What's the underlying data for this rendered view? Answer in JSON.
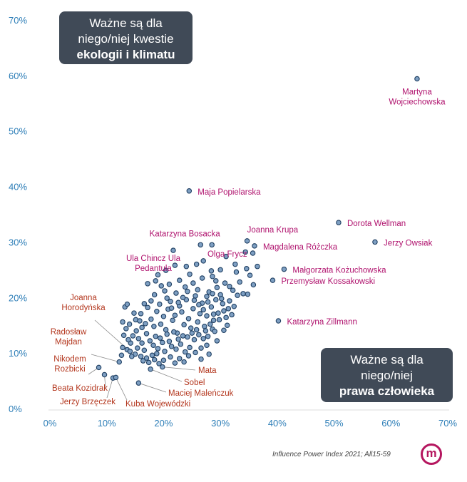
{
  "chart_data": {
    "type": "scatter",
    "xlim": [
      0,
      70
    ],
    "ylim": [
      0,
      70
    ],
    "x_ticks": [
      "0%",
      "10%",
      "20%",
      "30%",
      "40%",
      "50%",
      "60%",
      "70%"
    ],
    "y_ticks": [
      "0%",
      "10%",
      "20%",
      "30%",
      "40%",
      "50%",
      "60%",
      "70%"
    ],
    "grid": false,
    "colors": {
      "point_fill": "#7e9fc2",
      "point_stroke": "#1f3f62",
      "label_magenta": "#b0136e",
      "label_red": "#b3361d",
      "tick": "#2f7fb8",
      "callout_bg": "#404a57"
    },
    "labeled_points": [
      {
        "name": "Martyna\nWojciechowska",
        "x": 64.6,
        "y": 59.4,
        "color": "magenta"
      },
      {
        "name": "Maja Popielarska",
        "x": 24.5,
        "y": 39.2,
        "color": "magenta"
      },
      {
        "name": "Dorota Wellman",
        "x": 50.8,
        "y": 33.5,
        "color": "magenta"
      },
      {
        "name": "Jerzy Owsiak",
        "x": 57.2,
        "y": 30.0,
        "color": "magenta"
      },
      {
        "name": "Katarzyna Bosacka",
        "x": 28.5,
        "y": 29.5,
        "color": "magenta"
      },
      {
        "name": "Joanna Krupa",
        "x": 34.7,
        "y": 30.2,
        "color": "magenta"
      },
      {
        "name": "Magdalena Różczka",
        "x": 36.0,
        "y": 29.3,
        "color": "magenta"
      },
      {
        "name": "Olga Frycz",
        "x": 35.7,
        "y": 28.0,
        "color": "magenta"
      },
      {
        "name": "Ula Chincz Ula\nPedantula",
        "x": 21.7,
        "y": 28.5,
        "color": "magenta"
      },
      {
        "name": "Małgorzata Kożuchowska",
        "x": 41.2,
        "y": 25.1,
        "color": "magenta"
      },
      {
        "name": "Przemysław Kossakowski",
        "x": 39.2,
        "y": 23.1,
        "color": "magenta"
      },
      {
        "name": "Katarzyna Zillmann",
        "x": 40.2,
        "y": 15.8,
        "color": "magenta"
      },
      {
        "name": "Joanna\nHorodyńska",
        "x": 14.1,
        "y": 10.3,
        "color": "red"
      },
      {
        "name": "Radosław\nMajdan",
        "x": 12.2,
        "y": 8.4,
        "color": "red"
      },
      {
        "name": "Nikodem\nRozbicki",
        "x": 8.6,
        "y": 7.4,
        "color": "red"
      },
      {
        "name": "Beata Kozidrak",
        "x": 9.6,
        "y": 6.1,
        "color": "red"
      },
      {
        "name": "Jerzy Brzęczek",
        "x": 11.1,
        "y": 5.5,
        "color": "red"
      },
      {
        "name": "Kuba Wojewódzki",
        "x": 11.6,
        "y": 5.6,
        "color": "red"
      },
      {
        "name": "Maciej Maleńczuk",
        "x": 15.6,
        "y": 4.6,
        "color": "red"
      },
      {
        "name": "Sobel",
        "x": 17.7,
        "y": 7.1,
        "color": "red"
      },
      {
        "name": "Mata",
        "x": 19.8,
        "y": 7.5,
        "color": "red"
      },
      {
        "name": "",
        "x": 26.5,
        "y": 29.5,
        "color": "magenta"
      }
    ],
    "unlabeled_points": [
      [
        13.2,
        18.3
      ],
      [
        14.8,
        17.2
      ],
      [
        15.1,
        16.0
      ],
      [
        16.0,
        17.1
      ],
      [
        16.8,
        15.3
      ],
      [
        17.2,
        18.2
      ],
      [
        17.8,
        16.1
      ],
      [
        18.3,
        14.8
      ],
      [
        18.8,
        17.5
      ],
      [
        19.3,
        18.8
      ],
      [
        19.5,
        15.2
      ],
      [
        20.0,
        16.6
      ],
      [
        20.4,
        14.2
      ],
      [
        20.8,
        17.9
      ],
      [
        21.2,
        19.3
      ],
      [
        21.6,
        15.9
      ],
      [
        22.0,
        16.8
      ],
      [
        22.4,
        13.6
      ],
      [
        22.8,
        18.5
      ],
      [
        23.2,
        17.4
      ],
      [
        23.6,
        15.1
      ],
      [
        24.0,
        19.6
      ],
      [
        24.4,
        16.2
      ],
      [
        24.8,
        14.5
      ],
      [
        25.2,
        18.0
      ],
      [
        25.6,
        20.3
      ],
      [
        26.0,
        15.6
      ],
      [
        26.4,
        17.1
      ],
      [
        26.8,
        19.0
      ],
      [
        27.2,
        14.8
      ],
      [
        27.6,
        16.7
      ],
      [
        28.0,
        21.0
      ],
      [
        28.4,
        18.3
      ],
      [
        28.8,
        15.9
      ],
      [
        29.2,
        19.6
      ],
      [
        29.6,
        17.2
      ],
      [
        30.0,
        20.5
      ],
      [
        30.4,
        18.9
      ],
      [
        31.0,
        16.4
      ],
      [
        31.6,
        22.0
      ],
      [
        32.2,
        21.3
      ],
      [
        32.8,
        24.6
      ],
      [
        33.4,
        22.8
      ],
      [
        34.0,
        20.7
      ],
      [
        34.6,
        25.2
      ],
      [
        35.2,
        24.0
      ],
      [
        35.8,
        22.3
      ],
      [
        36.5,
        25.6
      ],
      [
        33.0,
        20.4
      ],
      [
        34.8,
        20.6
      ],
      [
        17.0,
        13.5
      ],
      [
        17.6,
        12.2
      ],
      [
        18.2,
        11.4
      ],
      [
        18.6,
        13.0
      ],
      [
        19.0,
        10.8
      ],
      [
        19.4,
        12.7
      ],
      [
        19.8,
        11.9
      ],
      [
        20.2,
        10.3
      ],
      [
        20.6,
        13.4
      ],
      [
        21.0,
        12.1
      ],
      [
        21.4,
        11.2
      ],
      [
        21.8,
        13.8
      ],
      [
        22.2,
        10.7
      ],
      [
        22.6,
        12.5
      ],
      [
        23.0,
        11.6
      ],
      [
        23.4,
        13.1
      ],
      [
        23.8,
        10.2
      ],
      [
        24.2,
        12.9
      ],
      [
        24.6,
        11.0
      ],
      [
        25.0,
        13.6
      ],
      [
        25.4,
        12.4
      ],
      [
        25.8,
        14.2
      ],
      [
        26.2,
        13.3
      ],
      [
        26.6,
        10.9
      ],
      [
        27.0,
        12.6
      ],
      [
        27.4,
        14.0
      ],
      [
        27.8,
        13.0
      ],
      [
        28.2,
        15.2
      ],
      [
        28.6,
        14.3
      ],
      [
        29.0,
        13.9
      ],
      [
        15.6,
        12.6
      ],
      [
        16.2,
        11.8
      ],
      [
        16.6,
        10.5
      ],
      [
        14.6,
        13.1
      ],
      [
        14.2,
        11.8
      ],
      [
        13.8,
        12.4
      ],
      [
        15.0,
        9.8
      ],
      [
        15.4,
        10.9
      ],
      [
        16.0,
        9.4
      ],
      [
        16.4,
        8.6
      ],
      [
        17.0,
        9.1
      ],
      [
        17.4,
        8.3
      ],
      [
        18.0,
        9.6
      ],
      [
        18.4,
        8.8
      ],
      [
        18.8,
        9.9
      ],
      [
        19.2,
        8.1
      ],
      [
        13.6,
        10.6
      ],
      [
        14.4,
        9.4
      ],
      [
        20.2,
        21.2
      ],
      [
        21.0,
        22.4
      ],
      [
        22.2,
        20.8
      ],
      [
        22.8,
        23.1
      ],
      [
        23.8,
        21.9
      ],
      [
        24.6,
        24.2
      ],
      [
        25.2,
        22.6
      ],
      [
        26.0,
        21.4
      ],
      [
        26.8,
        23.5
      ],
      [
        27.6,
        20.2
      ],
      [
        28.4,
        24.8
      ],
      [
        29.2,
        23.0
      ],
      [
        30.0,
        25.0
      ],
      [
        30.8,
        22.6
      ],
      [
        31.6,
        19.4
      ],
      [
        32.4,
        18.4
      ],
      [
        20.6,
        19.9
      ],
      [
        21.4,
        18.1
      ],
      [
        22.6,
        19.1
      ],
      [
        23.4,
        20.0
      ],
      [
        24.2,
        21.1
      ],
      [
        25.4,
        19.5
      ],
      [
        26.2,
        18.7
      ],
      [
        27.0,
        17.8
      ],
      [
        27.8,
        19.2
      ],
      [
        28.6,
        20.7
      ],
      [
        29.4,
        21.8
      ],
      [
        30.2,
        19.8
      ],
      [
        18.4,
        20.5
      ],
      [
        19.6,
        22.1
      ],
      [
        17.8,
        19.4
      ],
      [
        16.6,
        18.9
      ],
      [
        16.2,
        14.6
      ],
      [
        15.8,
        15.8
      ],
      [
        15.2,
        14.0
      ],
      [
        14.0,
        15.2
      ],
      [
        13.4,
        14.4
      ],
      [
        13.0,
        13.2
      ],
      [
        12.8,
        11.0
      ],
      [
        12.6,
        9.6
      ],
      [
        20.0,
        8.7
      ],
      [
        21.2,
        9.3
      ],
      [
        22.0,
        8.2
      ],
      [
        22.8,
        9.0
      ],
      [
        23.6,
        8.4
      ],
      [
        24.4,
        9.5
      ],
      [
        25.6,
        10.1
      ],
      [
        26.6,
        8.9
      ],
      [
        27.6,
        11.4
      ],
      [
        28.0,
        9.8
      ],
      [
        29.4,
        12.2
      ],
      [
        30.6,
        14.1
      ],
      [
        31.2,
        15.0
      ],
      [
        32.0,
        16.9
      ],
      [
        30.6,
        17.6
      ],
      [
        31.4,
        18.0
      ],
      [
        29.8,
        16.0
      ],
      [
        28.8,
        17.0
      ],
      [
        24.0,
        25.6
      ],
      [
        25.8,
        26.0
      ],
      [
        27.0,
        26.6
      ],
      [
        28.6,
        23.8
      ],
      [
        34.4,
        28.2
      ],
      [
        31.0,
        27.4
      ],
      [
        32.6,
        26.0
      ],
      [
        19.0,
        24.1
      ],
      [
        20.4,
        24.9
      ],
      [
        22.0,
        25.8
      ],
      [
        17.2,
        22.5
      ],
      [
        18.6,
        23.0
      ],
      [
        13.6,
        18.8
      ],
      [
        12.8,
        15.6
      ]
    ]
  },
  "callouts": {
    "left_line1": "Ważne są dla",
    "left_line2": "niego/niej kwestie",
    "left_bold": "ekologii i klimatu",
    "right_line1": "Ważne są dla",
    "right_line2": "niego/niej",
    "right_bold": "prawa człowieka"
  },
  "source": "Influence Power Index 2021; All15-59",
  "logo_letter": "m"
}
